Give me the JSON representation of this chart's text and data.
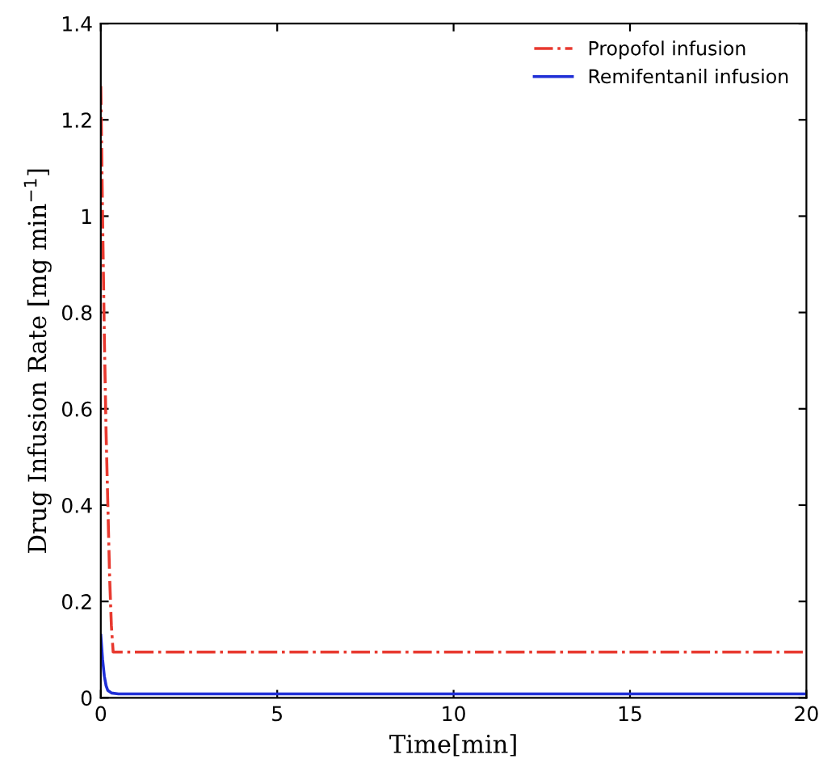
{
  "chart_data": {
    "type": "line",
    "xlabel": "Time[min]",
    "ylabel": "Drug Infusion Rate [mg min$^{−1}$]",
    "xlim": [
      0,
      20
    ],
    "ylim": [
      0,
      1.4
    ],
    "xticks": [
      0,
      5,
      10,
      15,
      20
    ],
    "yticks": [
      0,
      0.2,
      0.4,
      0.6,
      0.8,
      1,
      1.2,
      1.4
    ],
    "grid": false,
    "legend": "top right",
    "series": [
      {
        "name": "Propofol infusion",
        "color": "#e8392f",
        "line_style": "dashdot",
        "x": [
          0,
          0.05,
          0.1,
          0.15,
          0.2,
          0.25,
          0.3,
          0.35,
          0.5,
          1,
          5,
          10,
          15,
          20
        ],
        "values": [
          1.27,
          1.0,
          0.75,
          0.55,
          0.4,
          0.25,
          0.15,
          0.095,
          0.095,
          0.095,
          0.095,
          0.095,
          0.095,
          0.095
        ]
      },
      {
        "name": "Remifentanil infusion",
        "color": "#1f2fd6",
        "line_style": "solid",
        "x": [
          0,
          0.05,
          0.1,
          0.15,
          0.2,
          0.3,
          0.5,
          1,
          5,
          10,
          15,
          20
        ],
        "values": [
          0.13,
          0.08,
          0.045,
          0.025,
          0.015,
          0.01,
          0.008,
          0.008,
          0.008,
          0.008,
          0.008,
          0.008
        ]
      }
    ]
  }
}
